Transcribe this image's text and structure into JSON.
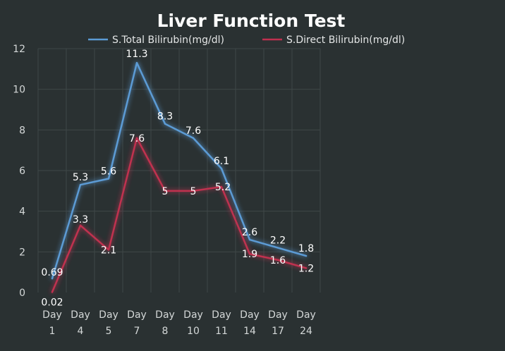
{
  "chart_data": {
    "type": "line",
    "title": "Liver Function Test",
    "xlabel": "",
    "ylabel": "",
    "categories": [
      [
        "Day",
        "1"
      ],
      [
        "Day",
        "4"
      ],
      [
        "Day",
        "5"
      ],
      [
        "Day",
        "7"
      ],
      [
        "Day",
        "8"
      ],
      [
        "Day",
        "10"
      ],
      [
        "Day",
        "11"
      ],
      [
        "Day",
        "14"
      ],
      [
        "Day",
        "17"
      ],
      [
        "Day",
        "24"
      ]
    ],
    "ylim": [
      0,
      12
    ],
    "yticks": [
      "0",
      "2",
      "4",
      "6",
      "8",
      "10",
      "12"
    ],
    "grid": true,
    "legend_position": "top",
    "series": [
      {
        "name": "S.Total Bilirubin(mg/dl)",
        "color": "#5b9bd5",
        "values": [
          0.69,
          5.3,
          5.6,
          11.3,
          8.3,
          7.6,
          6.1,
          2.6,
          2.2,
          1.8
        ],
        "labels": [
          "0.69",
          "5.3",
          "5.6",
          "11.3",
          "8.3",
          "7.6",
          "6.1",
          "2.6",
          "2.2",
          "1.8"
        ]
      },
      {
        "name": "S.Direct Bilirubin(mg/dl)",
        "color": "#c0304f",
        "values": [
          0.02,
          3.3,
          2.1,
          7.6,
          5,
          5,
          5.2,
          1.9,
          1.6,
          1.2
        ],
        "labels": [
          "0.02",
          "3.3",
          "2.1",
          "7.6",
          "5",
          "5",
          "5.2",
          "1.9",
          "1.6",
          "1.2"
        ]
      }
    ]
  }
}
